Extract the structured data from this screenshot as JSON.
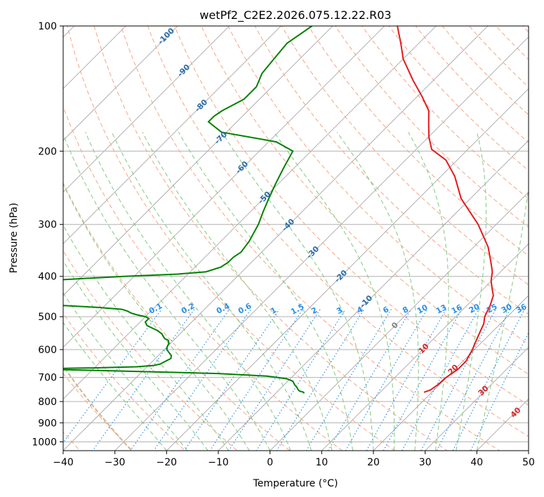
{
  "chart_data": {
    "type": "line",
    "title": "wetPf2_C2E2.2026.075.12.22.R03",
    "xlabel": "Temperature (°C)",
    "ylabel": "Pressure (hPa)",
    "xlim": [
      -40,
      50
    ],
    "ylim": [
      1050,
      100
    ],
    "y_scale": "log",
    "skew": true,
    "grid": true,
    "x_ticks": [
      -40,
      -30,
      -20,
      -10,
      0,
      10,
      20,
      30,
      40,
      50
    ],
    "y_ticks": [
      1000,
      900,
      800,
      700,
      600,
      500,
      400,
      300,
      200,
      100
    ],
    "colors": {
      "temperature": "#e41a1c",
      "dewpoint": "#008000",
      "dry_adiabats": "#f4a582",
      "moist_adiabats": "#7fc97f",
      "mixing_ratio": "#2a8fe8",
      "isotherms": "#9e9e9e",
      "bounding_isotherm": "#d2b48c"
    },
    "series": [
      {
        "key": "temperature",
        "p": [
          760,
          750,
          730,
          700,
          670,
          640,
          600,
          560,
          520,
          500,
          470,
          445,
          430,
          410,
          390,
          370,
          340,
          300,
          260,
          230,
          210,
          198,
          185,
          172,
          160,
          148,
          135,
          120,
          110,
          100
        ],
        "t": [
          18.5,
          19.3,
          19.7,
          19.9,
          20.6,
          20.6,
          19.6,
          18.2,
          16.8,
          15.6,
          14.5,
          13.2,
          11.8,
          9.9,
          8.4,
          6.3,
          2.8,
          -3.5,
          -11.8,
          -17.3,
          -22.2,
          -27.0,
          -29.9,
          -32.5,
          -35.0,
          -39.0,
          -44.0,
          -50.0,
          -53.5,
          -57.5
        ]
      },
      {
        "key": "dewpoint",
        "p": [
          765,
          760,
          755,
          750,
          740,
          730,
          715,
          705,
          695,
          685,
          680,
          675,
          672,
          670,
          668,
          666,
          665,
          664,
          662,
          660,
          655,
          650,
          640,
          630,
          620,
          610,
          600,
          590,
          580,
          570,
          565,
          560,
          550,
          540,
          530,
          525,
          520,
          515,
          510,
          505,
          500,
          495,
          490,
          485,
          480,
          475,
          470,
          467,
          465,
          460,
          458,
          455,
          450,
          440,
          430,
          420,
          410,
          400,
          395,
          390,
          380,
          370,
          360,
          350,
          330,
          300,
          280,
          260,
          240,
          220,
          200,
          190,
          180,
          170,
          165,
          160,
          150,
          140,
          130,
          120,
          110,
          100
        ],
        "t": [
          -4.5,
          -4.8,
          -5.8,
          -6.3,
          -7.0,
          -7.9,
          -9.0,
          -10.7,
          -15.0,
          -25.0,
          -35.0,
          -46.0,
          -52.0,
          -57.0,
          -59.0,
          -57.0,
          -54.0,
          -50.0,
          -46.0,
          -42.0,
          -39.0,
          -38.0,
          -37.5,
          -37.0,
          -37.5,
          -38.5,
          -39.5,
          -40.0,
          -40.3,
          -41.0,
          -42.0,
          -42.5,
          -43.5,
          -45.0,
          -47.0,
          -48.0,
          -48.5,
          -49.0,
          -49.0,
          -49.0,
          -50.0,
          -52.0,
          -53.5,
          -54.5,
          -56.0,
          -61.0,
          -68.0,
          -75.0,
          -77.0,
          -79.0,
          -80.5,
          -81.0,
          -81.0,
          -80.5,
          -79.5,
          -78.5,
          -77.0,
          -62.0,
          -52.0,
          -47.0,
          -45.0,
          -44.5,
          -44.5,
          -44.0,
          -44.5,
          -46.0,
          -47.5,
          -49.0,
          -50.5,
          -52.0,
          -53.5,
          -58.5,
          -71.0,
          -75.5,
          -75.5,
          -75.0,
          -73.0,
          -73.0,
          -74.5,
          -75.0,
          -75.5,
          -74.0
        ]
      }
    ],
    "dry_adiabat_labels": [
      "-100",
      "-90",
      "-80",
      "-70",
      "-60",
      "-50",
      "-40",
      "-30",
      "-20",
      "-10"
    ],
    "mixing_ratio_labels": [
      "0.1",
      "0.2",
      "0.4",
      "0.6",
      "1",
      "1.5",
      "2",
      "3",
      "4",
      "6",
      "8",
      "10",
      "13",
      "16",
      "20",
      "25",
      "30",
      "36"
    ],
    "wet_bulb_labels": [
      "0",
      "10",
      "20",
      "30",
      "40"
    ]
  }
}
